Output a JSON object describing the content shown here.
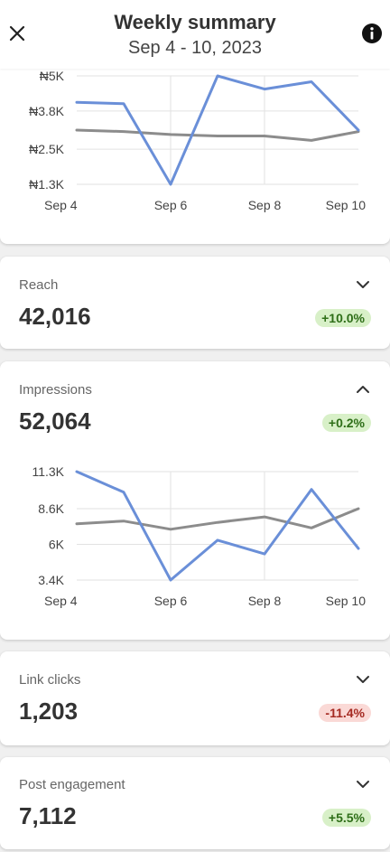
{
  "header": {
    "title": "Weekly summary",
    "date_range": "Sep 4 - 10, 2023"
  },
  "icons": {
    "close": "close-icon",
    "info": "info-icon",
    "chevron_down": "chevron-down-icon",
    "chevron_up": "chevron-up-icon"
  },
  "colors": {
    "this_week": "#6a8fd8",
    "previous_week": "#8c8c8c",
    "positive_badge_bg": "#d8f0c8",
    "positive_badge_text": "#2e6e18",
    "negative_badge_bg": "#fad9d6",
    "negative_badge_text": "#a52a22"
  },
  "metrics": {
    "reach": {
      "label": "Reach",
      "value": "42,016",
      "change": "+10.0%",
      "expanded": false
    },
    "impressions": {
      "label": "Impressions",
      "value": "52,064",
      "change": "+0.2%",
      "expanded": true
    },
    "link_clicks": {
      "label": "Link clicks",
      "value": "1,203",
      "change": "-11.4%",
      "expanded": false
    },
    "post_engagement": {
      "label": "Post engagement",
      "value": "7,112",
      "change": "+5.5%",
      "expanded": false
    }
  },
  "chart_data": [
    {
      "type": "line",
      "title": "",
      "x": [
        "Sep 4",
        "Sep 5",
        "Sep 6",
        "Sep 7",
        "Sep 8",
        "Sep 9",
        "Sep 10"
      ],
      "x_tick_labels": [
        "Sep 4",
        "Sep 6",
        "Sep 8",
        "Sep 10"
      ],
      "y_tick_labels": [
        "₦5K",
        "₦3.8K",
        "₦2.5K",
        "₦1.3K"
      ],
      "y_ticks": [
        5000,
        3800,
        2500,
        1300
      ],
      "ylim": [
        1300,
        5000
      ],
      "grid": true,
      "series": [
        {
          "values": [
            4100,
            4050,
            1300,
            5000,
            4550,
            4800,
            3150
          ]
        },
        {
          "values": [
            3150,
            3100,
            3000,
            2950,
            2950,
            2800,
            3100
          ]
        }
      ]
    },
    {
      "type": "line",
      "title": "",
      "x": [
        "Sep 4",
        "Sep 5",
        "Sep 6",
        "Sep 7",
        "Sep 8",
        "Sep 9",
        "Sep 10"
      ],
      "x_tick_labels": [
        "Sep 4",
        "Sep 6",
        "Sep 8",
        "Sep 10"
      ],
      "y_tick_labels": [
        "11.3K",
        "8.6K",
        "6K",
        "3.4K"
      ],
      "y_ticks": [
        11300,
        8600,
        6000,
        3400
      ],
      "ylim": [
        3400,
        11300
      ],
      "grid": true,
      "series": [
        {
          "values": [
            11300,
            9800,
            3400,
            6300,
            5300,
            10000,
            5700
          ]
        },
        {
          "values": [
            7500,
            7700,
            7100,
            7600,
            8000,
            7200,
            8600
          ]
        }
      ]
    }
  ]
}
